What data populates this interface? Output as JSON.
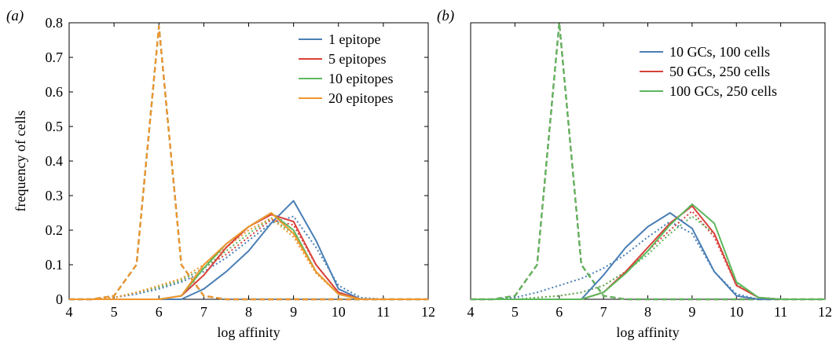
{
  "chart_data": [
    {
      "type": "line",
      "panel_label": "(a)",
      "xlabel": "log affinity",
      "ylabel": "frequency of cells",
      "xlim": [
        4,
        12
      ],
      "ylim": [
        0,
        0.8
      ],
      "xticks": [
        "4",
        "5",
        "6",
        "7",
        "8",
        "9",
        "10",
        "11",
        "12"
      ],
      "yticks": [
        "0",
        "0.1",
        "0.2",
        "0.3",
        "0.4",
        "0.5",
        "0.6",
        "0.7",
        "0.8"
      ],
      "legend_position": "top-right",
      "x": [
        4,
        4.5,
        5,
        5.5,
        6,
        6.5,
        7,
        7.5,
        8,
        8.5,
        9,
        9.5,
        10,
        10.5,
        11,
        11.5,
        12
      ],
      "series": [
        {
          "name": "1 epitope",
          "color": "#4a7fb5",
          "solid": [
            0,
            0,
            0,
            0,
            0,
            0,
            0.03,
            0.08,
            0.14,
            0.22,
            0.285,
            0.17,
            0.03,
            0,
            0,
            0,
            0
          ],
          "dotted": [
            0,
            0,
            0.005,
            0.015,
            0.03,
            0.05,
            0.08,
            0.12,
            0.17,
            0.22,
            0.24,
            0.15,
            0.04,
            0.005,
            0,
            0,
            0
          ],
          "dashed": [
            0,
            0,
            0.01,
            0.1,
            0.79,
            0.1,
            0.01,
            0,
            0,
            0,
            0,
            0,
            0,
            0,
            0,
            0,
            0
          ]
        },
        {
          "name": "5 epitopes",
          "color": "#d9403a",
          "solid": [
            0,
            0,
            0,
            0,
            0,
            0.01,
            0.07,
            0.15,
            0.21,
            0.245,
            0.225,
            0.1,
            0.02,
            0,
            0,
            0,
            0
          ],
          "dotted": [
            0,
            0,
            0.005,
            0.02,
            0.035,
            0.055,
            0.09,
            0.13,
            0.18,
            0.23,
            0.215,
            0.1,
            0.02,
            0,
            0,
            0,
            0
          ],
          "dashed": [
            0,
            0,
            0.01,
            0.1,
            0.79,
            0.1,
            0.01,
            0,
            0,
            0,
            0,
            0,
            0,
            0,
            0,
            0,
            0
          ]
        },
        {
          "name": "10 epitopes",
          "color": "#5cb85c",
          "solid": [
            0,
            0,
            0,
            0,
            0,
            0.01,
            0.09,
            0.16,
            0.21,
            0.25,
            0.2,
            0.08,
            0.015,
            0,
            0,
            0,
            0
          ],
          "dotted": [
            0,
            0,
            0.005,
            0.02,
            0.035,
            0.055,
            0.09,
            0.14,
            0.19,
            0.235,
            0.19,
            0.08,
            0.015,
            0,
            0,
            0,
            0
          ],
          "dashed": [
            0,
            0,
            0.01,
            0.1,
            0.79,
            0.1,
            0.01,
            0,
            0,
            0,
            0,
            0,
            0,
            0,
            0,
            0,
            0
          ]
        },
        {
          "name": "20 epitopes",
          "color": "#f0962e",
          "solid": [
            0,
            0,
            0,
            0,
            0,
            0.01,
            0.1,
            0.16,
            0.21,
            0.25,
            0.19,
            0.08,
            0.015,
            0,
            0,
            0,
            0
          ],
          "dotted": [
            0,
            0,
            0.005,
            0.02,
            0.04,
            0.06,
            0.1,
            0.15,
            0.2,
            0.235,
            0.18,
            0.075,
            0.015,
            0,
            0,
            0,
            0
          ],
          "dashed": [
            0,
            0,
            0.01,
            0.1,
            0.79,
            0.1,
            0.01,
            0,
            0,
            0,
            0,
            0,
            0,
            0,
            0,
            0,
            0
          ]
        }
      ]
    },
    {
      "type": "line",
      "panel_label": "(b)",
      "xlabel": "log affinity",
      "ylabel": "",
      "xlim": [
        4,
        12
      ],
      "ylim": [
        0,
        0.8
      ],
      "xticks": [
        "4",
        "5",
        "6",
        "7",
        "8",
        "9",
        "10",
        "11",
        "12"
      ],
      "yticks": [],
      "legend_position": "top-right",
      "x": [
        4,
        4.5,
        5,
        5.5,
        6,
        6.5,
        7,
        7.5,
        8,
        8.5,
        9,
        9.5,
        10,
        10.5,
        11,
        11.5,
        12
      ],
      "series": [
        {
          "name": "10 GCs, 100 cells",
          "color": "#4a7fb5",
          "solid": [
            0,
            0,
            0,
            0,
            0,
            0,
            0.07,
            0.15,
            0.21,
            0.25,
            0.205,
            0.08,
            0.01,
            0,
            0,
            0,
            0
          ],
          "dotted": [
            0,
            0,
            0.005,
            0.02,
            0.04,
            0.06,
            0.09,
            0.13,
            0.18,
            0.225,
            0.19,
            0.08,
            0.015,
            0,
            0,
            0,
            0
          ],
          "dashed": [
            0,
            0,
            0.01,
            0.1,
            0.8,
            0.1,
            0.01,
            0,
            0,
            0,
            0,
            0,
            0,
            0,
            0,
            0,
            0
          ]
        },
        {
          "name": "50 GCs, 250 cells",
          "color": "#d9403a",
          "solid": [
            0,
            0,
            0,
            0,
            0,
            0,
            0.02,
            0.08,
            0.15,
            0.22,
            0.27,
            0.19,
            0.04,
            0.005,
            0,
            0,
            0
          ],
          "dotted": [
            0,
            0,
            0,
            0.005,
            0.01,
            0.02,
            0.04,
            0.08,
            0.14,
            0.2,
            0.255,
            0.18,
            0.04,
            0.005,
            0,
            0,
            0
          ],
          "dashed": [
            0,
            0,
            0.01,
            0.1,
            0.8,
            0.1,
            0.01,
            0,
            0,
            0,
            0,
            0,
            0,
            0,
            0,
            0,
            0
          ]
        },
        {
          "name": "100 GCs, 250 cells",
          "color": "#5cb85c",
          "solid": [
            0,
            0,
            0,
            0,
            0,
            0,
            0.02,
            0.075,
            0.14,
            0.215,
            0.275,
            0.22,
            0.05,
            0.005,
            0,
            0,
            0
          ],
          "dotted": [
            0,
            0,
            0,
            0.005,
            0.01,
            0.02,
            0.04,
            0.08,
            0.13,
            0.19,
            0.24,
            0.19,
            0.045,
            0.005,
            0,
            0,
            0
          ],
          "dashed": [
            0,
            0,
            0.01,
            0.1,
            0.8,
            0.1,
            0.01,
            0,
            0,
            0,
            0,
            0,
            0,
            0,
            0,
            0,
            0
          ]
        }
      ]
    }
  ]
}
